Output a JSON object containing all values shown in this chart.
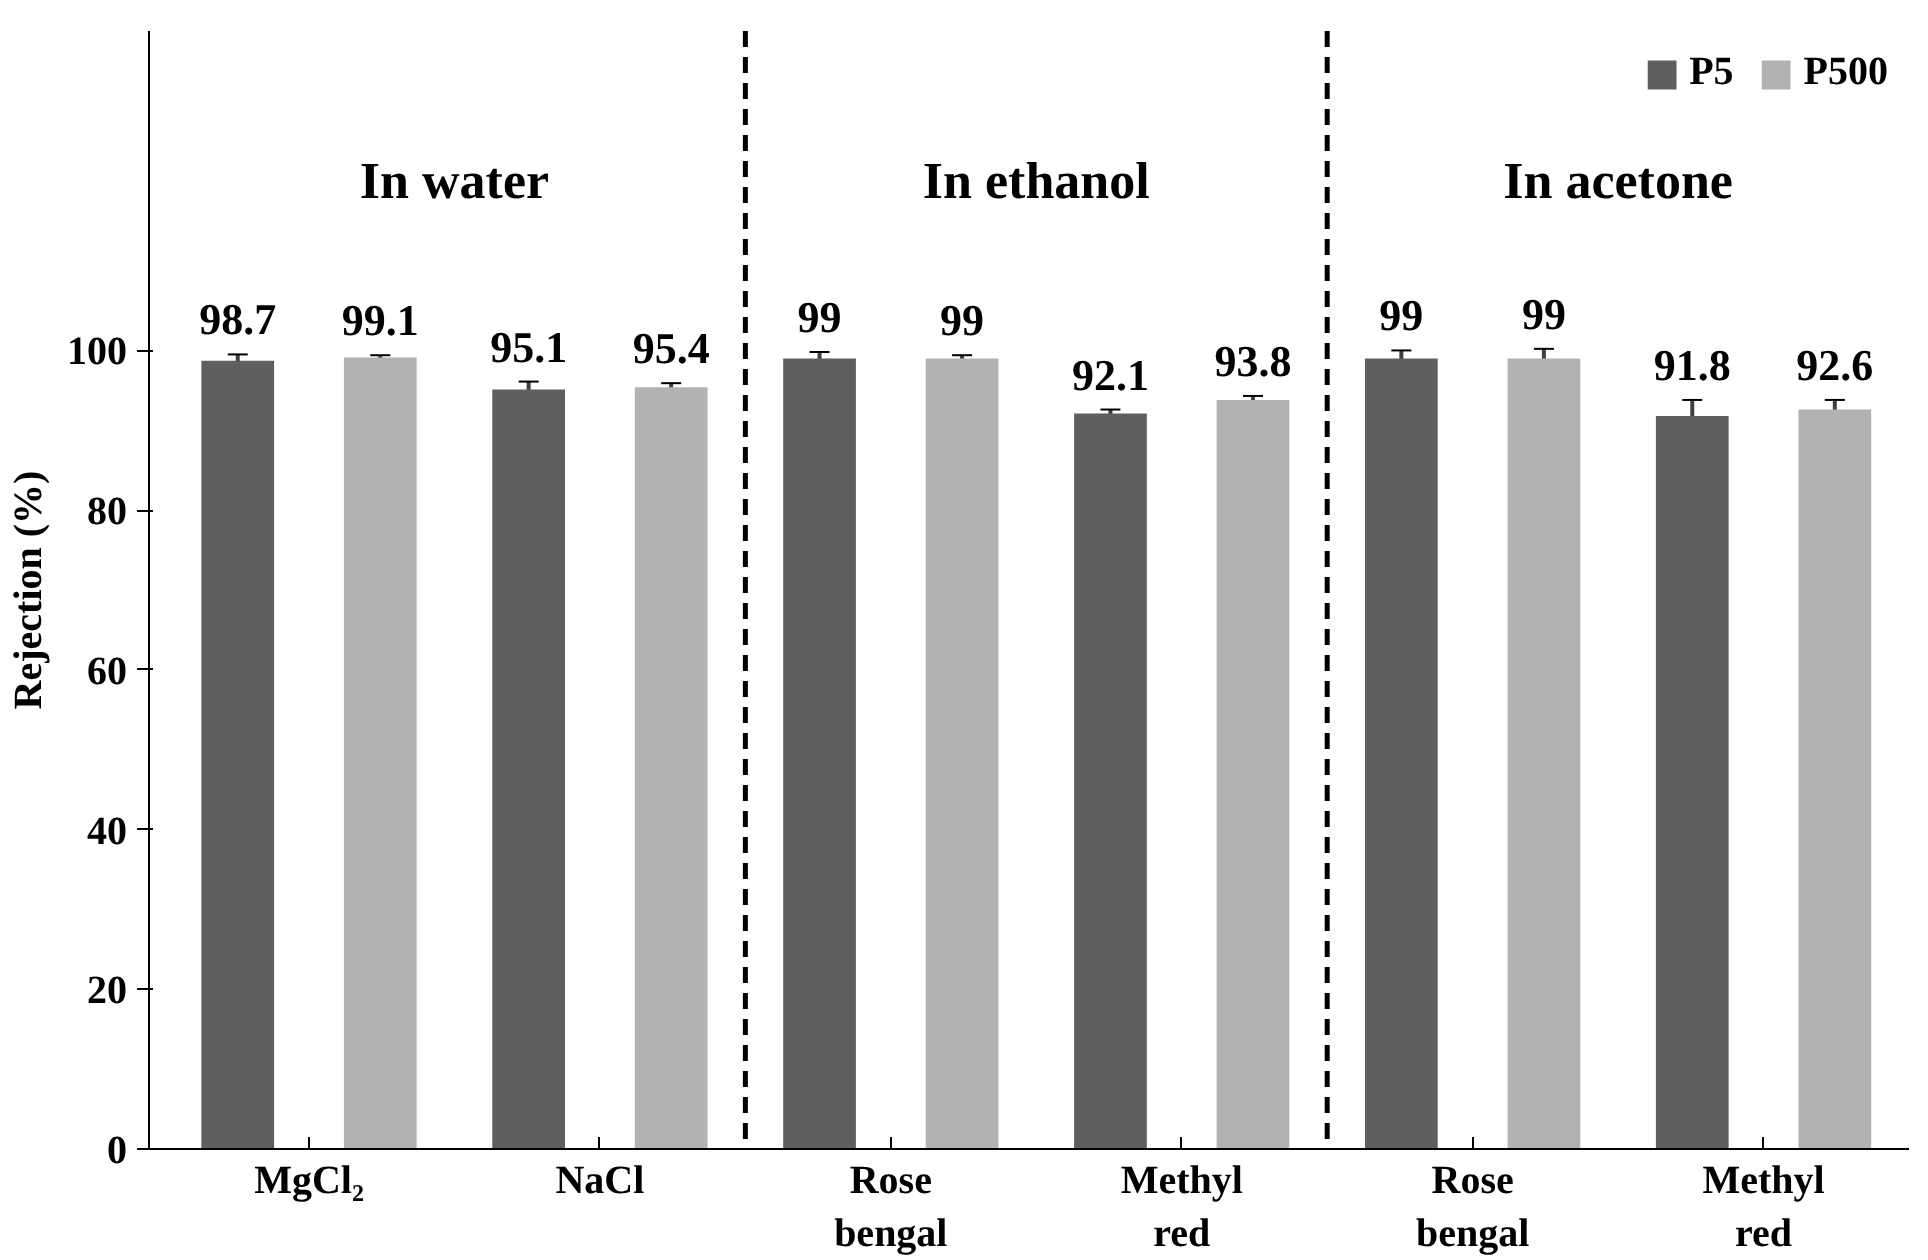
{
  "chart_data": {
    "type": "bar",
    "ylabel": "Rejection (%)",
    "categories": [
      "MgCl₂",
      "NaCl",
      "Rose bengal",
      "Methyl red",
      "Rose bengal",
      "Methyl red"
    ],
    "series": [
      {
        "name": "P5",
        "color": "#5f5f5f",
        "values": [
          98.7,
          95.1,
          99,
          92.1,
          99,
          91.8
        ],
        "errors": [
          0.8,
          1.0,
          0.8,
          0.5,
          1.0,
          2.0
        ]
      },
      {
        "name": "P500",
        "color": "#b2b2b2",
        "values": [
          99.1,
          95.4,
          99,
          93.8,
          99,
          92.6
        ],
        "errors": [
          0.3,
          0.5,
          0.4,
          0.5,
          1.2,
          1.2
        ]
      }
    ],
    "ylim": [
      0,
      140
    ],
    "yticks": [
      0,
      20,
      40,
      60,
      80,
      100
    ],
    "annotations": [
      "In water",
      "In ethanol",
      "In acetone"
    ],
    "data_labels": true,
    "grid": false,
    "legend": "top right"
  }
}
